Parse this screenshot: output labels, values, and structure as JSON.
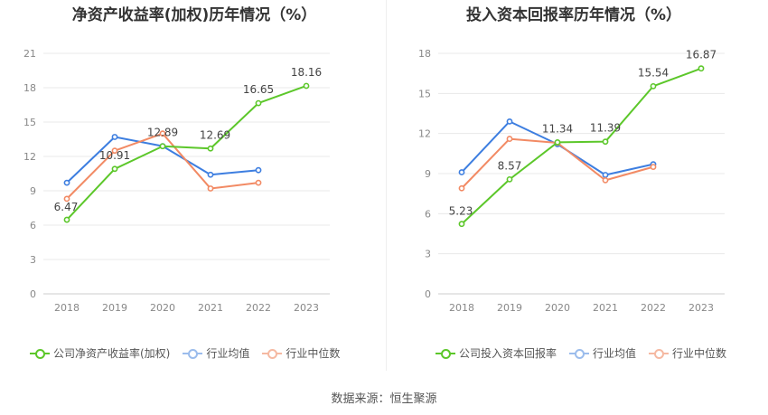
{
  "source": "数据来源：恒生聚源",
  "chart_data": [
    {
      "type": "line",
      "title": "净资产收益率(加权)历年情况（%）",
      "categories": [
        "2018",
        "2019",
        "2020",
        "2021",
        "2022",
        "2023"
      ],
      "ylim": [
        0,
        21
      ],
      "yticks": [
        0,
        3,
        6,
        9,
        12,
        15,
        18,
        21
      ],
      "series": [
        {
          "name": "公司净资产收益率(加权)",
          "color": "#5cc72a",
          "values": [
            6.47,
            10.91,
            12.89,
            12.69,
            16.65,
            18.16
          ],
          "labels": [
            "6.47",
            "10.91",
            "12.89",
            "12.69",
            "16.65",
            "18.16"
          ]
        },
        {
          "name": "行业均值",
          "color": "#3d7ee0",
          "values": [
            9.7,
            13.7,
            12.9,
            10.4,
            10.8,
            null
          ]
        },
        {
          "name": "行业中位数",
          "color": "#f28a64",
          "values": [
            8.3,
            12.5,
            14.0,
            9.2,
            9.7,
            null
          ]
        }
      ]
    },
    {
      "type": "line",
      "title": "投入资本回报率历年情况（%）",
      "categories": [
        "2018",
        "2019",
        "2020",
        "2021",
        "2022",
        "2023"
      ],
      "ylim": [
        0,
        18
      ],
      "yticks": [
        0,
        3,
        6,
        9,
        12,
        15,
        18
      ],
      "series": [
        {
          "name": "公司投入资本回报率",
          "color": "#5cc72a",
          "values": [
            5.23,
            8.57,
            11.34,
            11.39,
            15.54,
            16.87
          ],
          "labels": [
            "5.23",
            "8.57",
            "11.34",
            "11.39",
            "15.54",
            "16.87"
          ]
        },
        {
          "name": "行业均值",
          "color": "#3d7ee0",
          "values": [
            9.1,
            12.9,
            11.2,
            8.9,
            9.7,
            null
          ]
        },
        {
          "name": "行业中位数",
          "color": "#f28a64",
          "values": [
            7.9,
            11.6,
            11.3,
            8.5,
            9.5,
            null
          ]
        }
      ]
    }
  ]
}
